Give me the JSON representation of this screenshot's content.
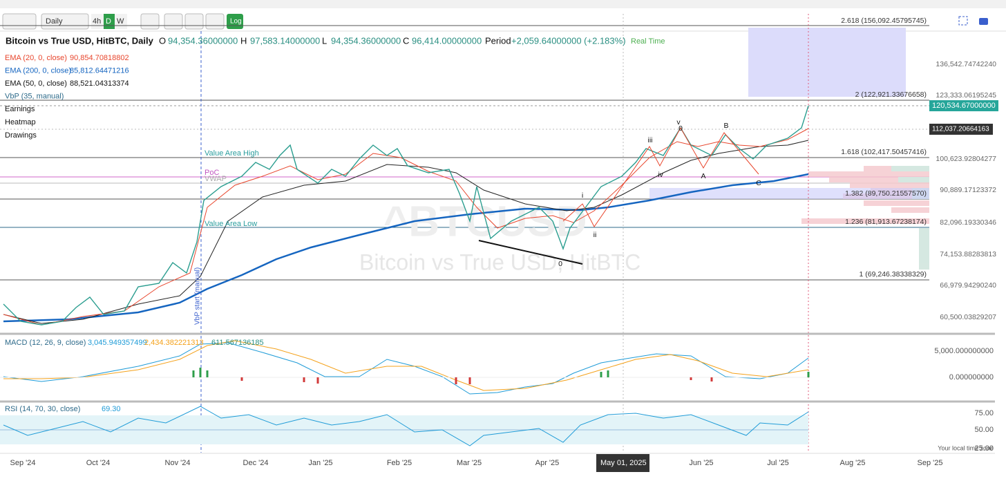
{
  "toolbar": {
    "interval": "Daily",
    "buttons": [
      "4h",
      "D",
      "W"
    ],
    "log": "Log"
  },
  "legend": {
    "symbol": "Bitcoin vs True USD, HitBTC, Daily",
    "open_label": "O",
    "open": "94,354.36000000",
    "high_label": "H",
    "high": "97,583.14000000",
    "low_label": "L",
    "low": "94,354.36000000",
    "close_label": "C",
    "close": "96,414.00000000",
    "period_label": "Period",
    "period": "+2,059.64000000 (+2.183%)",
    "realtime": "Real Time",
    "indicators": [
      {
        "name": "EMA (20, 0, close)",
        "value": "90,854.70818802"
      },
      {
        "name": "EMA (200, 0, close)",
        "value": "85,812.64471216"
      },
      {
        "name": "EMA (50, 0, close)",
        "value": "88,521.04313374"
      },
      {
        "name": "VbP (35, manual)"
      }
    ],
    "toggles": [
      "Earnings",
      "Heatmap",
      "Drawings"
    ]
  },
  "price_axis": [
    "136,542.74742240",
    "123,333.06195245",
    "100,623.92804277",
    "90,889.17123372",
    "82,096.19330346",
    "74,153.88283813",
    "66,979.94290240",
    "60,500.03829207"
  ],
  "price_badges": [
    "120,534.67000000",
    "112,037.20664163"
  ],
  "fib_levels": [
    "2.618 (156,092.45795745)",
    "2 (122,921.33676658)",
    "1.618 (102,417.50457416)",
    "1.382 (89,750.21557570)",
    "1.236 (81,913.67238174)",
    "1 (69,246.38338329)"
  ],
  "annotations": [
    "Value Area High",
    "PoC",
    "VWAP",
    "Value Area Low",
    "VbP start (manual)"
  ],
  "wave_labels": [
    "i",
    "ii",
    "iii",
    "iv",
    "v",
    "0",
    "0",
    "A",
    "B",
    "C"
  ],
  "watermark": {
    "symbol": "^BTCUSD",
    "name": "Bitcoin vs True USD, HitBTC"
  },
  "macd": {
    "label": "MACD (12, 26, 9, close)",
    "values": [
      "3,045.949357499",
      "2,434.382221313",
      "611.567136185"
    ],
    "axis": [
      "5,000.000000000",
      "0.000000000"
    ]
  },
  "rsi": {
    "label": "RSI (14, 70, 30, close)",
    "value": "69.30",
    "axis": [
      "75.00",
      "50.00",
      "25.00"
    ],
    "timezone": "Your local time zone"
  },
  "time_axis": [
    "Sep '24",
    "Oct '24",
    "Nov '24",
    "Dec '24",
    "Jan '25",
    "Feb '25",
    "Mar '25",
    "Apr '25",
    "Jun '25",
    "Jul '25",
    "Aug '25",
    "Sep '25"
  ],
  "crosshair_date": "May 01, 2025"
}
